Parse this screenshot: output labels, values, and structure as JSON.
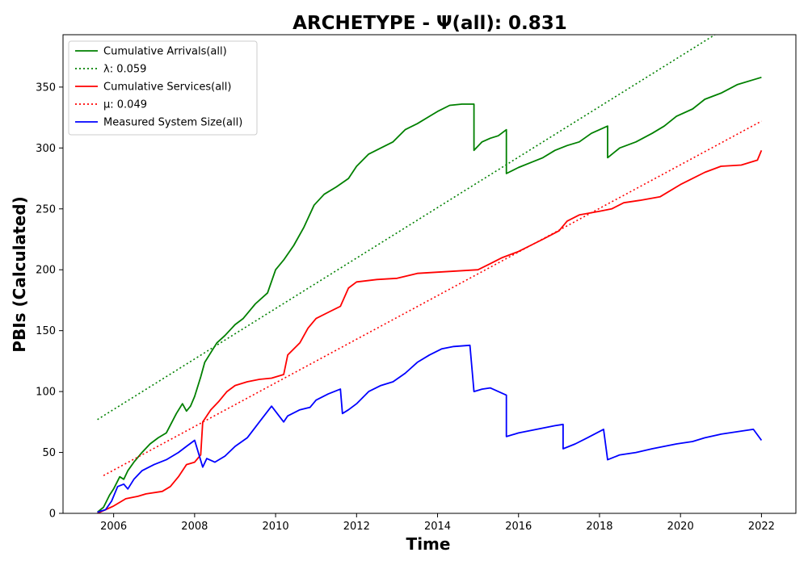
{
  "chart_data": {
    "type": "line",
    "title": "ARCHETYPE -  Ψ(all): 0.831",
    "xlabel": "Time",
    "ylabel": "PBIs (Calculated)",
    "xlim": [
      2004.75,
      2022.85
    ],
    "ylim": [
      0,
      393
    ],
    "x_ticks": [
      2006,
      2008,
      2010,
      2012,
      2014,
      2016,
      2018,
      2020,
      2022
    ],
    "x_tick_labels": [
      "2006",
      "2008",
      "2010",
      "2012",
      "2014",
      "2016",
      "2018",
      "2020",
      "2022"
    ],
    "y_ticks": [
      0,
      50,
      100,
      150,
      200,
      250,
      300,
      350
    ],
    "y_tick_labels": [
      "0",
      "50",
      "100",
      "150",
      "200",
      "250",
      "300",
      "350"
    ],
    "grid": false,
    "legend_position": "top-left",
    "series": [
      {
        "name": "Cumulative Arrivals(all)",
        "color": "#008000",
        "style": "solid",
        "x": [
          2005.6,
          2005.75,
          2005.9,
          2006.0,
          2006.15,
          2006.25,
          2006.35,
          2006.5,
          2006.7,
          2006.9,
          2007.1,
          2007.3,
          2007.55,
          2007.7,
          2007.8,
          2007.9,
          2008.0,
          2008.15,
          2008.25,
          2008.4,
          2008.55,
          2008.75,
          2009.0,
          2009.2,
          2009.5,
          2009.8,
          2010.0,
          2010.2,
          2010.45,
          2010.7,
          2010.95,
          2011.2,
          2011.5,
          2011.8,
          2012.0,
          2012.3,
          2012.6,
          2012.9,
          2013.2,
          2013.5,
          2013.8,
          2014.0,
          2014.3,
          2014.6,
          2014.9,
          2014.9,
          2015.1,
          2015.3,
          2015.5,
          2015.7,
          2015.7,
          2016.0,
          2016.3,
          2016.6,
          2016.9,
          2017.2,
          2017.5,
          2017.8,
          2018.2,
          2018.2,
          2018.5,
          2018.9,
          2019.3,
          2019.6,
          2019.9,
          2020.3,
          2020.6,
          2021.0,
          2021.4,
          2021.8,
          2022.0
        ],
        "values": [
          1,
          5,
          15,
          20,
          30,
          28,
          35,
          42,
          50,
          57,
          62,
          66,
          82,
          90,
          84,
          88,
          96,
          112,
          124,
          132,
          140,
          146,
          155,
          160,
          172,
          181,
          200,
          208,
          220,
          235,
          253,
          262,
          268,
          275,
          285,
          295,
          300,
          305,
          315,
          320,
          326,
          330,
          335,
          336,
          336,
          298,
          305,
          308,
          310,
          315,
          279,
          284,
          288,
          292,
          298,
          302,
          305,
          312,
          318,
          292,
          300,
          305,
          312,
          318,
          326,
          332,
          340,
          345,
          352,
          356,
          358
        ]
      },
      {
        "name": "λ: 0.059",
        "color": "#008000",
        "style": "dotted",
        "x": [
          2005.6,
          2020.85
        ],
        "values": [
          77,
          393
        ]
      },
      {
        "name": "Cumulative Services(all)",
        "color": "#ff0000",
        "style": "solid",
        "x": [
          2005.6,
          2005.8,
          2006.0,
          2006.2,
          2006.3,
          2006.6,
          2006.8,
          2007.2,
          2007.4,
          2007.6,
          2007.8,
          2008.0,
          2008.15,
          2008.2,
          2008.4,
          2008.6,
          2008.8,
          2009.0,
          2009.3,
          2009.6,
          2009.9,
          2010.2,
          2010.3,
          2010.6,
          2010.8,
          2011.0,
          2011.3,
          2011.6,
          2011.8,
          2012.0,
          2012.5,
          2013.0,
          2013.5,
          2014.0,
          2014.5,
          2015.0,
          2015.3,
          2015.6,
          2016.0,
          2016.3,
          2016.6,
          2017.0,
          2017.2,
          2017.5,
          2018.0,
          2018.3,
          2018.6,
          2019.0,
          2019.5,
          2020.0,
          2020.3,
          2020.6,
          2021.0,
          2021.5,
          2021.9,
          2022.0
        ],
        "values": [
          0,
          3,
          6,
          10,
          12,
          14,
          16,
          18,
          22,
          30,
          40,
          42,
          48,
          75,
          85,
          92,
          100,
          105,
          108,
          110,
          111,
          114,
          130,
          140,
          152,
          160,
          165,
          170,
          185,
          190,
          192,
          193,
          197,
          198,
          199,
          200,
          205,
          210,
          215,
          220,
          225,
          232,
          240,
          245,
          248,
          250,
          255,
          257,
          260,
          270,
          275,
          280,
          285,
          286,
          290,
          298
        ]
      },
      {
        "name": "μ: 0.049",
        "color": "#ff0000",
        "style": "dotted",
        "x": [
          2005.75,
          2022.0
        ],
        "values": [
          31,
          322
        ]
      },
      {
        "name": "Measured System Size(all)",
        "color": "#0000ff",
        "style": "solid",
        "x": [
          2005.6,
          2005.8,
          2005.95,
          2006.1,
          2006.25,
          2006.35,
          2006.5,
          2006.7,
          2007.0,
          2007.3,
          2007.6,
          2007.8,
          2008.0,
          2008.2,
          2008.3,
          2008.5,
          2008.75,
          2009.0,
          2009.3,
          2009.6,
          2009.9,
          2010.2,
          2010.3,
          2010.6,
          2010.85,
          2011.0,
          2011.3,
          2011.6,
          2011.65,
          2011.8,
          2012.0,
          2012.3,
          2012.6,
          2012.9,
          2013.2,
          2013.5,
          2013.8,
          2014.1,
          2014.4,
          2014.8,
          2014.9,
          2015.1,
          2015.3,
          2015.5,
          2015.7,
          2015.7,
          2016.0,
          2016.3,
          2016.6,
          2016.9,
          2017.1,
          2017.1,
          2017.4,
          2017.7,
          2018.1,
          2018.2,
          2018.5,
          2018.9,
          2019.3,
          2019.6,
          2019.9,
          2020.3,
          2020.6,
          2021.0,
          2021.4,
          2021.8,
          2022.0
        ],
        "values": [
          1,
          3,
          10,
          22,
          24,
          20,
          28,
          35,
          40,
          44,
          50,
          55,
          60,
          38,
          45,
          42,
          47,
          55,
          62,
          75,
          88,
          75,
          80,
          85,
          87,
          93,
          98,
          102,
          82,
          85,
          90,
          100,
          105,
          108,
          115,
          124,
          130,
          135,
          137,
          138,
          100,
          102,
          103,
          100,
          97,
          63,
          66,
          68,
          70,
          72,
          73,
          53,
          57,
          62,
          69,
          44,
          48,
          50,
          53,
          55,
          57,
          59,
          62,
          65,
          67,
          69,
          60
        ]
      }
    ]
  }
}
